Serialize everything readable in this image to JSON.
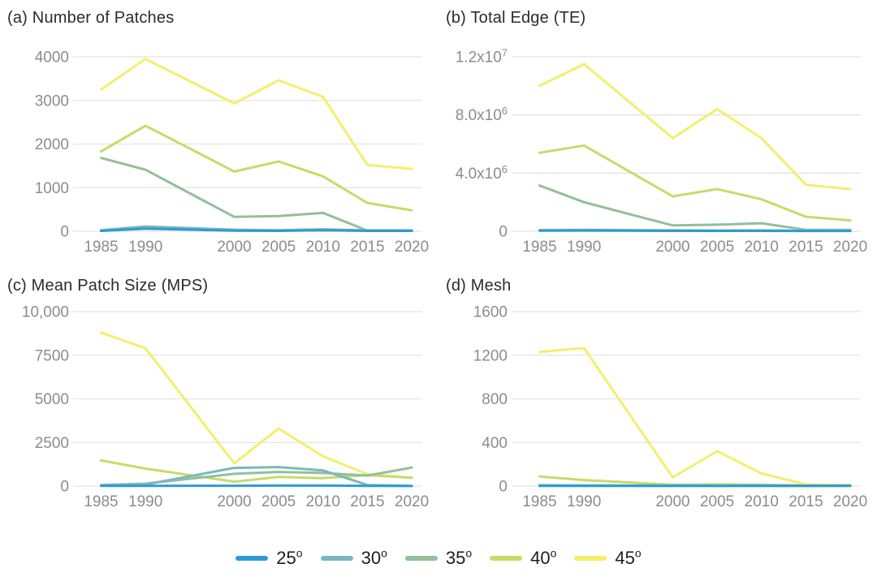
{
  "styles": {
    "background": "#FFFFFF",
    "grid_color": "#E4E4E4",
    "tick_label_color": "#8C8C8C",
    "title_color": "#2B2B2B",
    "legend_text_color": "#1E1E1E"
  },
  "legend": [
    {
      "label": "25",
      "sup": "o",
      "color": "#2E9BD2"
    },
    {
      "label": "30",
      "sup": "o",
      "color": "#7BB7BE"
    },
    {
      "label": "35",
      "sup": "o",
      "color": "#93BF9B"
    },
    {
      "label": "40",
      "sup": "o",
      "color": "#C8DA69"
    },
    {
      "label": "45",
      "sup": "o",
      "color": "#F4EF6B"
    }
  ],
  "chart_data": [
    {
      "type": "line",
      "title": "(a) Number of Patches",
      "x": [
        1985,
        1990,
        2000,
        2005,
        2010,
        2015,
        2020
      ],
      "x_tick_labels": [
        "1985",
        "1990",
        "2000",
        "2005",
        "2010",
        "2015",
        "2020"
      ],
      "ylim": [
        0,
        4000
      ],
      "yticks": [
        0,
        1000,
        2000,
        3000,
        4000
      ],
      "ytick_labels": [
        {
          "t": "0",
          "sup": ""
        },
        {
          "t": "1000",
          "sup": ""
        },
        {
          "t": "2000",
          "sup": ""
        },
        {
          "t": "3000",
          "sup": ""
        },
        {
          "t": "4000",
          "sup": ""
        }
      ],
      "grid": true,
      "series": [
        {
          "name": "25",
          "values": [
            10,
            60,
            15,
            10,
            25,
            10,
            10
          ]
        },
        {
          "name": "30",
          "values": [
            25,
            110,
            35,
            25,
            45,
            20,
            20
          ]
        },
        {
          "name": "35",
          "values": [
            1680,
            1410,
            330,
            350,
            420,
            15,
            15
          ]
        },
        {
          "name": "40",
          "values": [
            1830,
            2420,
            1370,
            1600,
            1260,
            650,
            480
          ]
        },
        {
          "name": "45",
          "values": [
            3250,
            3950,
            2930,
            3460,
            3080,
            1520,
            1430
          ]
        }
      ]
    },
    {
      "type": "line",
      "title": "(b) Total Edge (TE)",
      "x": [
        1985,
        1990,
        2000,
        2005,
        2010,
        2015,
        2020
      ],
      "x_tick_labels": [
        "1985",
        "1990",
        "2000",
        "2005",
        "2010",
        "2015",
        "2020"
      ],
      "ylim": [
        0,
        12000000
      ],
      "yticks": [
        0,
        4000000,
        8000000,
        12000000
      ],
      "ytick_labels": [
        {
          "t": "0",
          "sup": ""
        },
        {
          "t": "4.0x10",
          "sup": "6"
        },
        {
          "t": "8.0x10",
          "sup": "6"
        },
        {
          "t": "1.2x10",
          "sup": "7"
        }
      ],
      "grid": true,
      "series": [
        {
          "name": "25",
          "values": [
            40000,
            50000,
            30000,
            30000,
            30000,
            20000,
            20000
          ]
        },
        {
          "name": "30",
          "values": [
            80000,
            100000,
            60000,
            50000,
            60000,
            30000,
            30000
          ]
        },
        {
          "name": "35",
          "values": [
            3150000,
            2000000,
            400000,
            450000,
            550000,
            100000,
            100000
          ]
        },
        {
          "name": "40",
          "values": [
            5400000,
            5900000,
            2400000,
            2900000,
            2200000,
            1000000,
            750000
          ]
        },
        {
          "name": "45",
          "values": [
            10000000,
            11500000,
            6400000,
            8400000,
            6400000,
            3200000,
            2900000
          ]
        }
      ]
    },
    {
      "type": "line",
      "title": "(c) Mean Patch Size (MPS)",
      "x": [
        1985,
        1990,
        2000,
        2005,
        2010,
        2015,
        2020
      ],
      "x_tick_labels": [
        "1985",
        "1990",
        "2000",
        "2005",
        "2010",
        "2015",
        "2020"
      ],
      "ylim": [
        0,
        10000
      ],
      "yticks": [
        0,
        2500,
        5000,
        7500,
        10000
      ],
      "ytick_labels": [
        {
          "t": "0",
          "sup": ""
        },
        {
          "t": "2500",
          "sup": ""
        },
        {
          "t": "5000",
          "sup": ""
        },
        {
          "t": "7500",
          "sup": ""
        },
        {
          "t": "10,000",
          "sup": ""
        }
      ],
      "grid": true,
      "series": [
        {
          "name": "25",
          "values": [
            10,
            10,
            20,
            30,
            30,
            10,
            5
          ]
        },
        {
          "name": "30",
          "values": [
            50,
            90,
            1040,
            1090,
            900,
            60,
            10
          ]
        },
        {
          "name": "35",
          "values": [
            60,
            140,
            700,
            810,
            750,
            600,
            1060
          ]
        },
        {
          "name": "40",
          "values": [
            1470,
            1000,
            250,
            520,
            450,
            630,
            480
          ]
        },
        {
          "name": "45",
          "values": [
            8800,
            7900,
            1300,
            3300,
            1700,
            680,
            480
          ]
        }
      ]
    },
    {
      "type": "line",
      "title": "(d) Mesh",
      "x": [
        1985,
        1990,
        2000,
        2005,
        2010,
        2015,
        2020
      ],
      "x_tick_labels": [
        "1985",
        "1990",
        "2000",
        "2005",
        "2010",
        "2015",
        "2020"
      ],
      "ylim": [
        0,
        1600
      ],
      "yticks": [
        0,
        400,
        800,
        1200,
        1600
      ],
      "ytick_labels": [
        {
          "t": "0",
          "sup": ""
        },
        {
          "t": "400",
          "sup": ""
        },
        {
          "t": "800",
          "sup": ""
        },
        {
          "t": "1200",
          "sup": ""
        },
        {
          "t": "1600",
          "sup": ""
        }
      ],
      "grid": true,
      "series": [
        {
          "name": "25",
          "values": [
            2,
            2,
            2,
            2,
            2,
            2,
            2
          ]
        },
        {
          "name": "30",
          "values": [
            3,
            3,
            2,
            2,
            2,
            2,
            2
          ]
        },
        {
          "name": "35",
          "values": [
            8,
            6,
            5,
            6,
            6,
            4,
            4
          ]
        },
        {
          "name": "40",
          "values": [
            88,
            55,
            12,
            15,
            12,
            6,
            5
          ]
        },
        {
          "name": "45",
          "values": [
            1230,
            1265,
            80,
            320,
            115,
            15,
            10
          ]
        }
      ]
    }
  ]
}
